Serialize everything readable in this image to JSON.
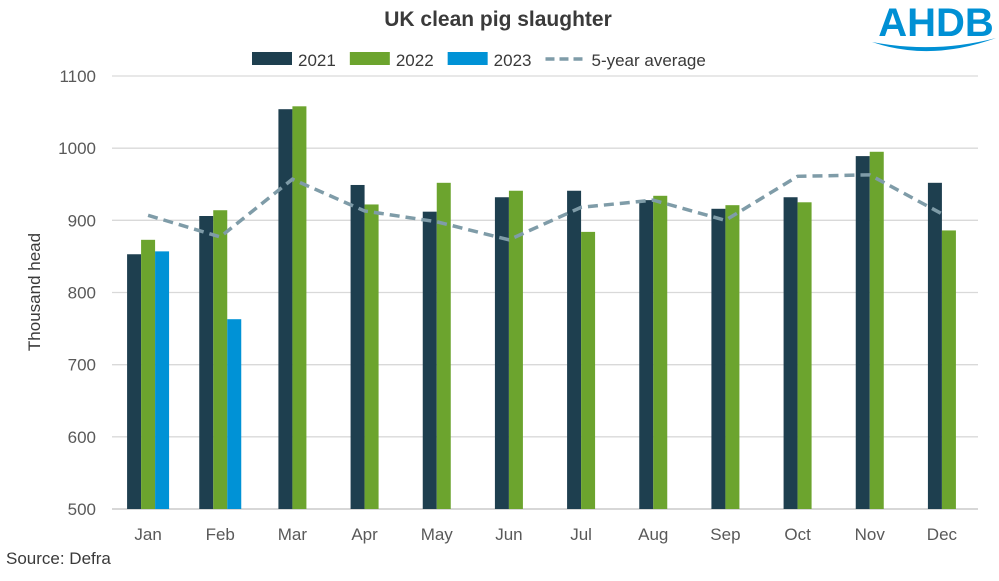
{
  "logo": {
    "text": "AHDB",
    "color": "#0090d4"
  },
  "source": "Source: Defra",
  "chart_data": {
    "type": "bar",
    "title": "UK clean pig slaughter",
    "xlabel": "",
    "ylabel": "Thousand head",
    "ylim": [
      500,
      1100
    ],
    "yticks": [
      500,
      600,
      700,
      800,
      900,
      1000,
      1100
    ],
    "grid": true,
    "legend": "top",
    "categories": [
      "Jan",
      "Feb",
      "Mar",
      "Apr",
      "May",
      "Jun",
      "Jul",
      "Aug",
      "Sep",
      "Oct",
      "Nov",
      "Dec"
    ],
    "series": [
      {
        "name": "2021",
        "type": "bar",
        "color": "#1e3f4f",
        "values": [
          853,
          906,
          1054,
          949,
          912,
          932,
          941,
          928,
          916,
          932,
          989,
          952
        ]
      },
      {
        "name": "2022",
        "type": "bar",
        "color": "#6ca42e",
        "values": [
          873,
          914,
          1058,
          922,
          952,
          941,
          884,
          934,
          921,
          925,
          995,
          886
        ]
      },
      {
        "name": "2023",
        "type": "bar",
        "color": "#0092d6",
        "values": [
          857,
          763,
          null,
          null,
          null,
          null,
          null,
          null,
          null,
          null,
          null,
          null
        ]
      },
      {
        "name": "5-year average",
        "type": "line",
        "style": "dashed",
        "color": "#7f9ca8",
        "values": [
          907,
          877,
          957,
          913,
          898,
          873,
          918,
          928,
          900,
          961,
          963,
          909
        ]
      }
    ]
  }
}
